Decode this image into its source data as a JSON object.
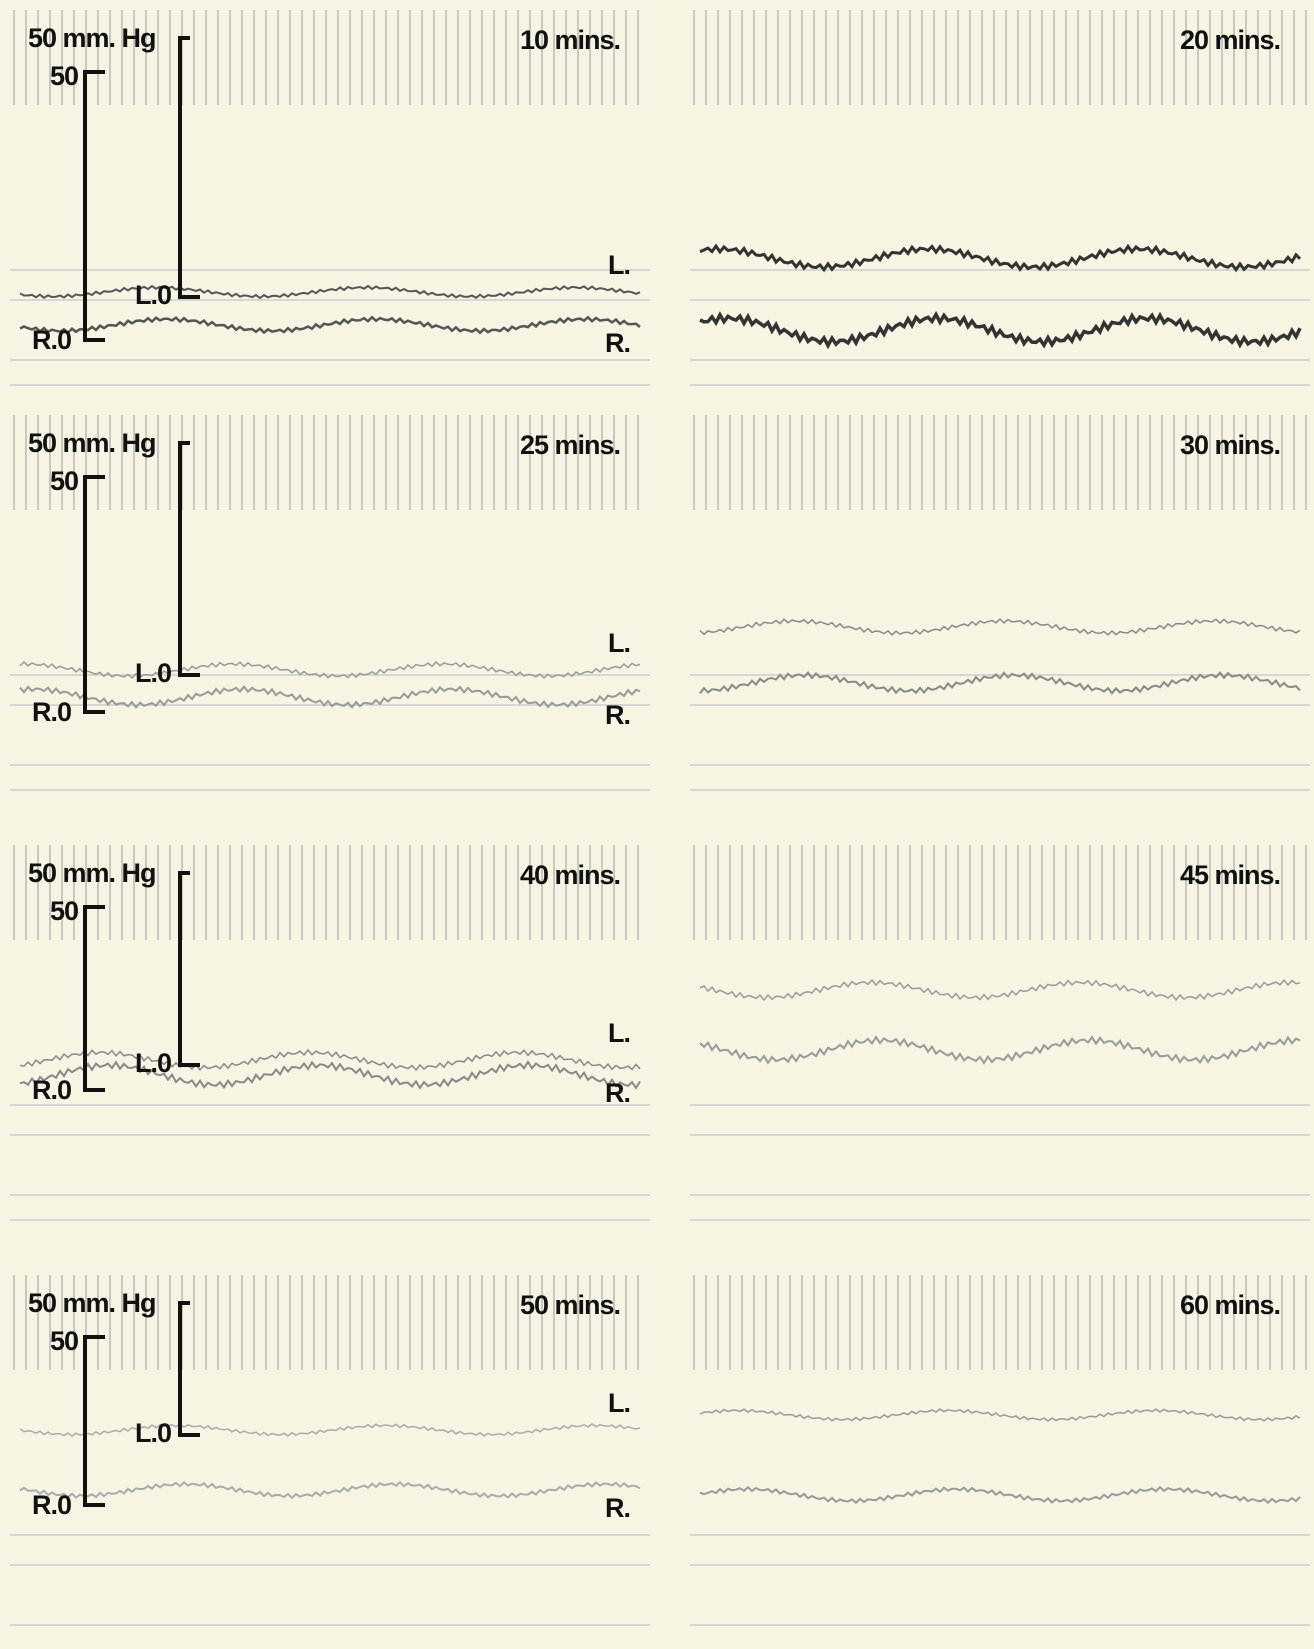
{
  "panels": [
    {
      "time": "10 mins.",
      "scale": "50 mm. Hg",
      "top": "50",
      "l_zero": "L.0",
      "r_zero": "R.0",
      "l": "L.",
      "r": "R."
    },
    {
      "time": "20 mins."
    },
    {
      "time": "25 mins.",
      "scale": "50 mm. Hg",
      "top": "50",
      "l_zero": "L.0",
      "r_zero": "R.0",
      "l": "L.",
      "r": "R."
    },
    {
      "time": "30 mins."
    },
    {
      "time": "40 mins.",
      "scale": "50 mm. Hg",
      "top": "50",
      "l_zero": "L.0",
      "r_zero": "R.0",
      "l": "L.",
      "r": "R."
    },
    {
      "time": "45 mins."
    },
    {
      "time": "50 mins.",
      "scale": "50 mm. Hg",
      "top": "50",
      "l_zero": "L.0",
      "r_zero": "R.0",
      "l": "L.",
      "r": "R."
    },
    {
      "time": "60 mins."
    }
  ]
}
